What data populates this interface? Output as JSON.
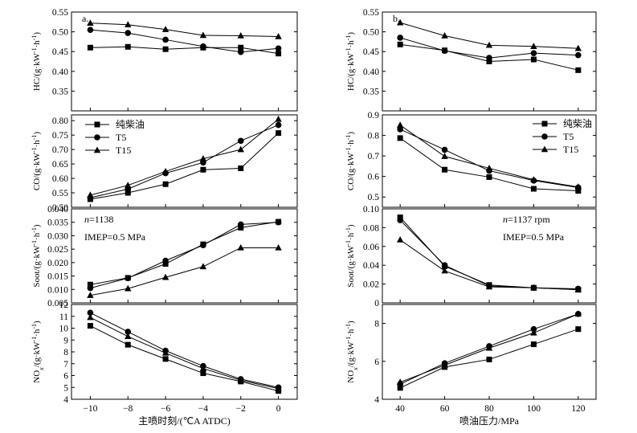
{
  "chart_data": [
    {
      "id": "a-hc",
      "column": "a",
      "type": "line",
      "panel_label": "a.",
      "x": [
        -10,
        -8,
        -6,
        -4,
        -2,
        0
      ],
      "ylabel_prefix": "HC/(g·kW",
      "ylabel_mid": "·h",
      "ylabel_suffix": ")",
      "sup": "-1",
      "ylim": [
        0.3,
        0.55
      ],
      "yticks": [
        0.35,
        0.4,
        0.45,
        0.5,
        0.55
      ],
      "ytick_labels": [
        "0.35",
        "0.40",
        "0.45",
        "0.50",
        "0.55"
      ],
      "series": [
        {
          "name": "纯柴油",
          "marker": "square",
          "values": [
            0.46,
            0.462,
            0.456,
            0.46,
            0.46,
            0.445
          ]
        },
        {
          "name": "T5",
          "marker": "circle",
          "values": [
            0.505,
            0.497,
            0.48,
            0.463,
            0.449,
            0.458
          ]
        },
        {
          "name": "T15",
          "marker": "triangle",
          "values": [
            0.522,
            0.518,
            0.506,
            0.491,
            0.49,
            0.488
          ]
        }
      ]
    },
    {
      "id": "a-co",
      "column": "a",
      "type": "line",
      "x": [
        -10,
        -8,
        -6,
        -4,
        -2,
        0
      ],
      "ylabel_prefix": "CO/(g·kW",
      "ylabel_mid": "·h",
      "ylabel_suffix": ")",
      "sup": "-1",
      "ylim": [
        0.5,
        0.82
      ],
      "yticks": [
        0.5,
        0.55,
        0.6,
        0.65,
        0.7,
        0.75,
        0.8
      ],
      "ytick_labels": [
        "0.50",
        "0.55",
        "0.60",
        "0.65",
        "0.70",
        "0.75",
        "0.80"
      ],
      "legend": true,
      "series": [
        {
          "name": "纯柴油",
          "marker": "square",
          "values": [
            0.528,
            0.55,
            0.58,
            0.63,
            0.635,
            0.757
          ]
        },
        {
          "name": "T5",
          "marker": "circle",
          "values": [
            0.533,
            0.563,
            0.618,
            0.655,
            0.73,
            0.785
          ]
        },
        {
          "name": "T15",
          "marker": "triangle",
          "values": [
            0.542,
            0.576,
            0.624,
            0.668,
            0.7,
            0.805
          ]
        }
      ]
    },
    {
      "id": "a-soot",
      "column": "a",
      "type": "line",
      "x": [
        -10,
        -8,
        -6,
        -4,
        -2,
        0
      ],
      "ylabel_prefix": "Soot/(g·kW",
      "ylabel_mid": "·h",
      "ylabel_suffix": ")",
      "sup": "-1",
      "ylim": [
        0.005,
        0.04
      ],
      "yticks": [
        0.005,
        0.01,
        0.015,
        0.02,
        0.025,
        0.03,
        0.035,
        0.04
      ],
      "ytick_labels": [
        "0.005",
        "0.010",
        "0.015",
        "0.020",
        "0.025",
        "0.030",
        "0.035",
        "0.040"
      ],
      "annot1_italic": "n",
      "annot1_rest": "=1138",
      "annot2": "IMEP=0.5 MPa",
      "series": [
        {
          "name": "纯柴油",
          "marker": "square",
          "values": [
            0.0118,
            0.0143,
            0.0195,
            0.0268,
            0.033,
            0.0352
          ]
        },
        {
          "name": "T5",
          "marker": "circle",
          "values": [
            0.0105,
            0.0142,
            0.0207,
            0.0265,
            0.0342,
            0.035
          ]
        },
        {
          "name": "T15",
          "marker": "triangle",
          "values": [
            0.0078,
            0.0103,
            0.0145,
            0.0185,
            0.0255,
            0.0255
          ]
        }
      ]
    },
    {
      "id": "a-nox",
      "column": "a",
      "type": "line",
      "x": [
        -10,
        -8,
        -6,
        -4,
        -2,
        0
      ],
      "ylabel_prefix": "NO",
      "ylabel_sub": "x",
      "ylabel_after": "/(g·kW",
      "ylabel_mid": "·h",
      "ylabel_suffix": ")",
      "sup": "-1",
      "ylim": [
        4,
        12
      ],
      "yticks": [
        4,
        5,
        6,
        7,
        8,
        9,
        10,
        11,
        12
      ],
      "ytick_labels": [
        "4",
        "5",
        "6",
        "7",
        "8",
        "9",
        "10",
        "11",
        "12"
      ],
      "xtick_labels": [
        "−10",
        "−8",
        "−6",
        "−4",
        "−2",
        "0"
      ],
      "xlabel": "主喷时刻/(℃A ATDC)",
      "series": [
        {
          "name": "纯柴油",
          "marker": "square",
          "values": [
            10.2,
            8.6,
            7.4,
            6.2,
            5.5,
            4.7
          ]
        },
        {
          "name": "T5",
          "marker": "circle",
          "values": [
            11.3,
            9.7,
            8.1,
            6.8,
            5.7,
            5.0
          ]
        },
        {
          "name": "T15",
          "marker": "triangle",
          "values": [
            10.9,
            9.3,
            7.9,
            6.6,
            5.6,
            4.9
          ]
        }
      ]
    },
    {
      "id": "b-hc",
      "column": "b",
      "type": "line",
      "panel_label": "b.",
      "x": [
        40,
        60,
        80,
        100,
        120
      ],
      "ylabel_prefix": "HC/(g·kW",
      "ylabel_mid": "·h",
      "ylabel_suffix": ")",
      "sup": "-1",
      "ylim": [
        0.3,
        0.55
      ],
      "yticks": [
        0.35,
        0.4,
        0.45,
        0.5,
        0.55
      ],
      "ytick_labels": [
        "0.35",
        "0.40",
        "0.45",
        "0.50",
        "0.55"
      ],
      "series": [
        {
          "name": "纯柴油",
          "marker": "square",
          "values": [
            0.468,
            0.453,
            0.425,
            0.43,
            0.403
          ]
        },
        {
          "name": "T5",
          "marker": "circle",
          "values": [
            0.485,
            0.452,
            0.434,
            0.446,
            0.441
          ]
        },
        {
          "name": "T15",
          "marker": "triangle",
          "values": [
            0.523,
            0.49,
            0.466,
            0.463,
            0.458
          ]
        }
      ]
    },
    {
      "id": "b-co",
      "column": "b",
      "type": "line",
      "x": [
        40,
        60,
        80,
        100,
        120
      ],
      "ylabel_prefix": "CO/(g·kW",
      "ylabel_mid": "·h",
      "ylabel_suffix": ")",
      "sup": "-1",
      "ylim": [
        0.45,
        0.9
      ],
      "yticks": [
        0.5,
        0.6,
        0.7,
        0.8,
        0.9
      ],
      "ytick_labels": [
        "0.5",
        "0.6",
        "0.7",
        "0.8",
        "0.9"
      ],
      "legend": true,
      "series": [
        {
          "name": "纯柴油",
          "marker": "square",
          "values": [
            0.787,
            0.633,
            0.597,
            0.54,
            0.53
          ]
        },
        {
          "name": "T5",
          "marker": "circle",
          "values": [
            0.83,
            0.73,
            0.628,
            0.58,
            0.546
          ]
        },
        {
          "name": "T15",
          "marker": "triangle",
          "values": [
            0.85,
            0.698,
            0.64,
            0.584,
            0.549
          ]
        }
      ]
    },
    {
      "id": "b-soot",
      "column": "b",
      "type": "line",
      "x": [
        40,
        60,
        80,
        100,
        120
      ],
      "ylabel_prefix": "Soot/(g·kW",
      "ylabel_mid": "·h",
      "ylabel_suffix": ")",
      "sup": "-1",
      "ylim": [
        0,
        0.1
      ],
      "yticks": [
        0,
        0.02,
        0.04,
        0.06,
        0.08,
        0.1
      ],
      "ytick_labels": [
        "0",
        "0.02",
        "0.04",
        "0.06",
        "0.08",
        "0.10"
      ],
      "annot1_italic": "n",
      "annot1_rest": "=1137 rpm",
      "annot2": "IMEP=0.5 MPa",
      "series": [
        {
          "name": "纯柴油",
          "marker": "square",
          "values": [
            0.091,
            0.039,
            0.019,
            0.016,
            0.014
          ]
        },
        {
          "name": "T5",
          "marker": "circle",
          "values": [
            0.088,
            0.04,
            0.018,
            0.016,
            0.015
          ]
        },
        {
          "name": "T15",
          "marker": "triangle",
          "values": [
            0.067,
            0.034,
            0.017,
            0.016,
            0.014
          ]
        }
      ]
    },
    {
      "id": "b-nox",
      "column": "b",
      "type": "line",
      "x": [
        40,
        60,
        80,
        100,
        120
      ],
      "ylabel_prefix": "NO",
      "ylabel_sub": "x",
      "ylabel_after": "/(g·kW",
      "ylabel_mid": "·h",
      "ylabel_suffix": ")",
      "sup": "-1",
      "ylim": [
        4,
        9
      ],
      "yticks": [
        4,
        6,
        8
      ],
      "ytick_labels": [
        "4",
        "6",
        "8"
      ],
      "xtick_labels": [
        "40",
        "60",
        "80",
        "100",
        "120"
      ],
      "xlabel": "喷油压力/MPa",
      "series": [
        {
          "name": "纯柴油",
          "marker": "square",
          "values": [
            4.6,
            5.7,
            6.1,
            6.9,
            7.7
          ]
        },
        {
          "name": "T5",
          "marker": "circle",
          "values": [
            4.8,
            5.9,
            6.8,
            7.7,
            8.5
          ]
        },
        {
          "name": "T15",
          "marker": "triangle",
          "values": [
            4.9,
            5.8,
            6.7,
            7.5,
            8.5
          ]
        }
      ]
    }
  ]
}
